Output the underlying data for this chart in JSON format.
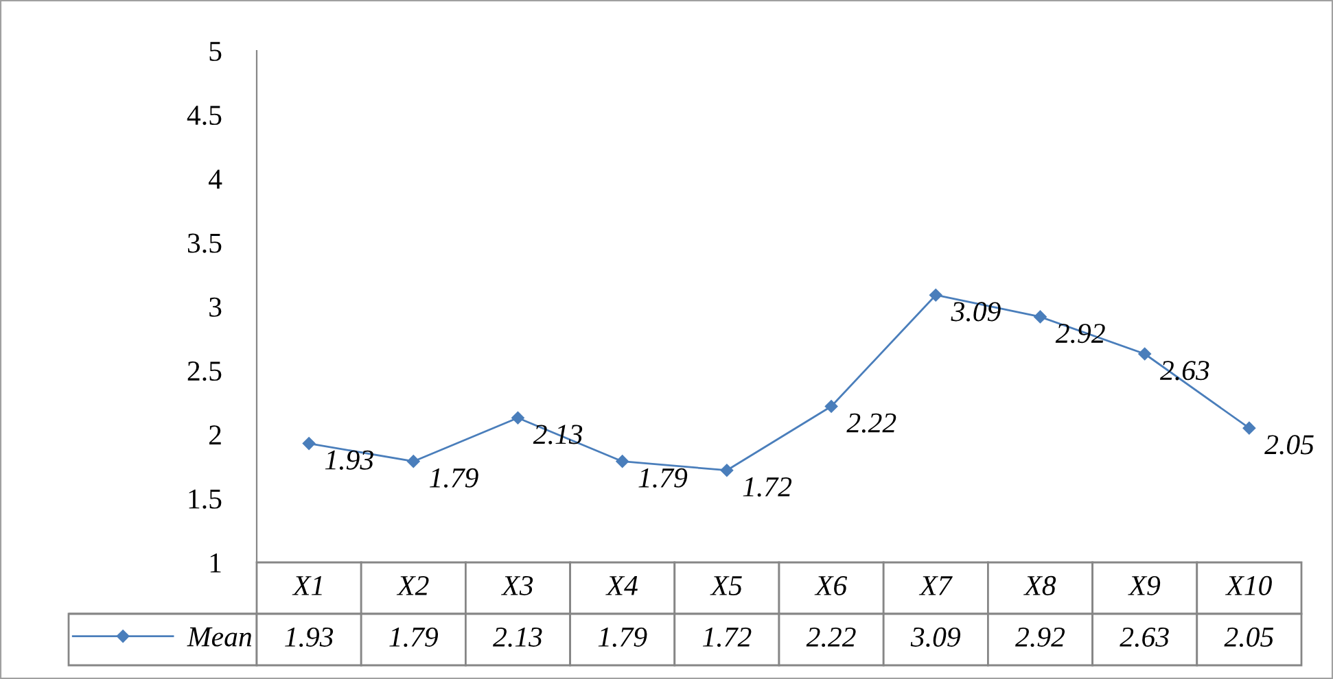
{
  "chart_data": {
    "type": "line",
    "categories": [
      "X1",
      "X2",
      "X3",
      "X4",
      "X5",
      "X6",
      "X7",
      "X8",
      "X9",
      "X10"
    ],
    "series": [
      {
        "name": "Mean",
        "color": "#4a7ebb",
        "values": [
          1.93,
          1.79,
          2.13,
          1.79,
          1.72,
          2.22,
          3.09,
          2.92,
          2.63,
          2.05
        ]
      }
    ],
    "annotations": [
      "1.93",
      "1.79",
      "2.13",
      "1.79",
      "1.72",
      "2.22",
      "3.09",
      "2.92",
      "2.63",
      "2.05"
    ],
    "ylim": [
      1,
      5
    ],
    "yticks": [
      1,
      1.5,
      2,
      2.5,
      3,
      3.5,
      4,
      4.5,
      5
    ],
    "marker": "diamond",
    "line_style": "solid",
    "data_labels": true,
    "grid": false,
    "legend": "bottom left"
  }
}
